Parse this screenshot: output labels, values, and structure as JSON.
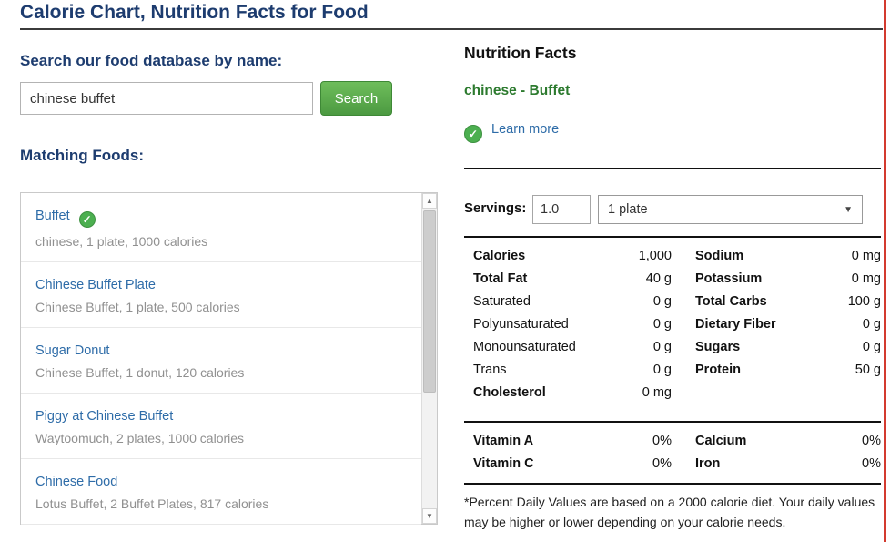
{
  "page": {
    "title": "Calorie Chart, Nutrition Facts for Food"
  },
  "search": {
    "heading": "Search our food database by name:",
    "value": "chinese buffet",
    "button": "Search"
  },
  "matching": {
    "heading": "Matching Foods:",
    "items": [
      {
        "name": "Buffet",
        "detail": "chinese, 1 plate, 1000 calories"
      },
      {
        "name": "Chinese Buffet Plate",
        "detail": "Chinese Buffet, 1 plate, 500 calories"
      },
      {
        "name": "Sugar Donut",
        "detail": "Chinese Buffet, 1 donut, 120 calories"
      },
      {
        "name": "Piggy at Chinese Buffet",
        "detail": "Waytoomuch, 2 plates, 1000 calories"
      },
      {
        "name": "Chinese Food",
        "detail": "Lotus Buffet, 2 Buffet Plates, 817 calories"
      }
    ]
  },
  "facts": {
    "heading": "Nutrition Facts",
    "food_name": "chinese - Buffet",
    "learn_more": "Learn more",
    "servings": {
      "label": "Servings:",
      "value": "1.0",
      "unit": "1 plate"
    },
    "rows": [
      {
        "left_label": "Calories",
        "left_value": "1,000",
        "right_label": "Sodium",
        "right_value": "0 mg"
      },
      {
        "left_label": "Total Fat",
        "left_value": "40 g",
        "right_label": "Potassium",
        "right_value": "0 mg"
      },
      {
        "left_label": "Saturated",
        "left_value": "0 g",
        "right_label": "Total Carbs",
        "right_value": "100 g"
      },
      {
        "left_label": "Polyunsaturated",
        "left_value": "0 g",
        "right_label": "Dietary Fiber",
        "right_value": "0 g"
      },
      {
        "left_label": "Monounsaturated",
        "left_value": "0 g",
        "right_label": "Sugars",
        "right_value": "0 g"
      },
      {
        "left_label": "Trans",
        "left_value": "0 g",
        "right_label": "Protein",
        "right_value": "50 g"
      },
      {
        "left_label": "Cholesterol",
        "left_value": "0 mg",
        "right_label": "",
        "right_value": ""
      }
    ],
    "vitamins": [
      {
        "left_label": "Vitamin A",
        "left_value": "0%",
        "right_label": "Calcium",
        "right_value": "0%"
      },
      {
        "left_label": "Vitamin C",
        "left_value": "0%",
        "right_label": "Iron",
        "right_value": "0%"
      }
    ],
    "footnote": "*Percent Daily Values are based on a 2000 calorie diet. Your daily values may be higher or lower depending on your calorie needs."
  },
  "icons": {
    "verified_check": "✓",
    "dropdown": "▼",
    "scroll_up": "▲",
    "scroll_down": "▼"
  },
  "colors": {
    "heading_navy": "#1d3c6f",
    "link_blue": "#2e6ca8",
    "food_green": "#2c7a2e",
    "button_green": "#4c9a41",
    "badge_green": "#4caf50",
    "accent_red": "#d33a2f"
  }
}
